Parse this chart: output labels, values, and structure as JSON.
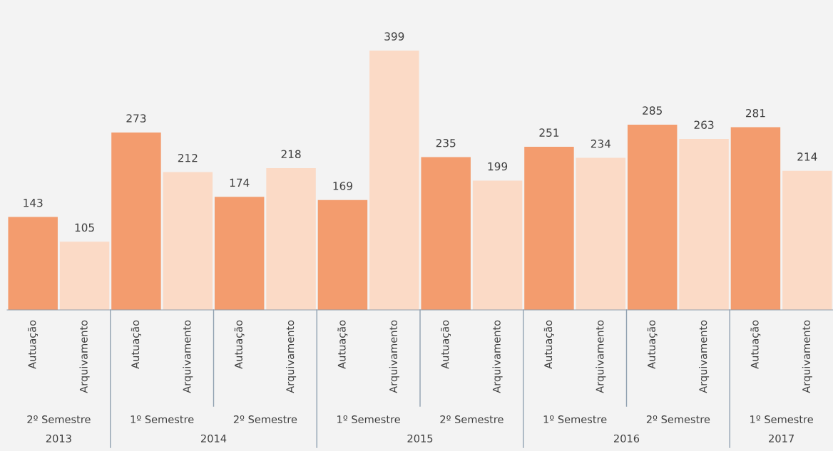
{
  "chart_data": {
    "type": "bar",
    "categories": [
      "Autuação",
      "Arquivamento",
      "Autuação",
      "Arquivamento",
      "Autuação",
      "Arquivamento",
      "Autuação",
      "Arquivamento",
      "Autuação",
      "Arquivamento",
      "Autuação",
      "Arquivamento",
      "Autuação",
      "Arquivamento",
      "Autuação",
      "Arquivamento"
    ],
    "values": [
      143,
      105,
      273,
      212,
      174,
      218,
      169,
      399,
      235,
      199,
      251,
      234,
      285,
      263,
      281,
      214
    ],
    "colors": [
      "#f39c6e",
      "#fbdac6",
      "#f39c6e",
      "#fbdac6",
      "#f39c6e",
      "#fbdac6",
      "#f39c6e",
      "#fbdac6",
      "#f39c6e",
      "#fbdac6",
      "#f39c6e",
      "#fbdac6",
      "#f39c6e",
      "#fbdac6",
      "#f39c6e",
      "#fbdac6"
    ],
    "data_labels": true,
    "grid": false,
    "legend": false,
    "annotations": [
      "2º Semestre",
      "1º Semestre",
      "2º Semestre",
      "1º Semestre",
      "2º Semestre",
      "1º Semestre",
      "2º Semestre",
      "1º Semestre",
      "2013",
      "2014",
      "2015",
      "2016",
      "2017"
    ]
  }
}
